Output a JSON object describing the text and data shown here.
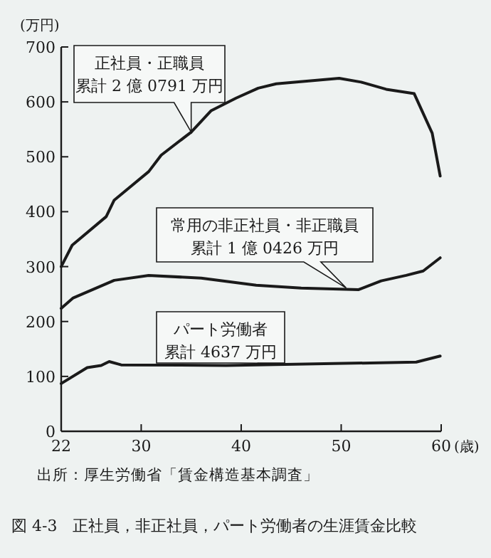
{
  "chart_data": {
    "type": "line",
    "title": "図 4-3　正社員，非正社員，パート労働者の生涯賃金比較",
    "xlabel": "(歳)",
    "ylabel": "(万円)",
    "xlim": [
      22,
      60
    ],
    "xticks": [
      22,
      30,
      40,
      50,
      60
    ],
    "ylim": [
      0,
      700
    ],
    "yticks": [
      0,
      100,
      200,
      300,
      400,
      500,
      600,
      700
    ],
    "series": [
      {
        "name": "正社員・正職員",
        "color": "#1a1a1a",
        "x": [
          22,
          23.1,
          26.5,
          27.3,
          30.75,
          32,
          35,
          37,
          39.5,
          41.7,
          43.5,
          49.8,
          52,
          54.5,
          57.3,
          59.1,
          59.9
        ],
        "values": [
          300,
          339,
          391,
          421,
          473,
          503,
          545,
          584,
          607,
          625,
          633,
          643,
          636,
          623,
          615,
          543,
          465
        ]
      },
      {
        "name": "常用の非正社員・非正職員",
        "color": "#1a1a1a",
        "x": [
          22,
          23.2,
          27.3,
          30.75,
          36,
          41.5,
          46,
          51.75,
          54,
          56.5,
          58.2,
          59.9
        ],
        "values": [
          224,
          243,
          275,
          284,
          279,
          266,
          261,
          258,
          274,
          284,
          292,
          316
        ]
      },
      {
        "name": "パート労働者",
        "color": "#1a1a1a",
        "x": [
          22,
          24.6,
          26,
          26.8,
          28,
          38.5,
          57.5,
          59.9
        ],
        "values": [
          87,
          116,
          120,
          127,
          121,
          120,
          126,
          137
        ]
      }
    ],
    "annotations": [
      {
        "text": "累計 2 億 0791 万円",
        "x": 35,
        "y": 545
      },
      {
        "text": "累計 1 億 0426 万円",
        "x": 50.5,
        "y": 261
      },
      {
        "text": "累計 4637 万円",
        "x": 47.5,
        "y": 123
      },
      "出所：厚生労働省「賃金構造基本調査」"
    ]
  }
}
